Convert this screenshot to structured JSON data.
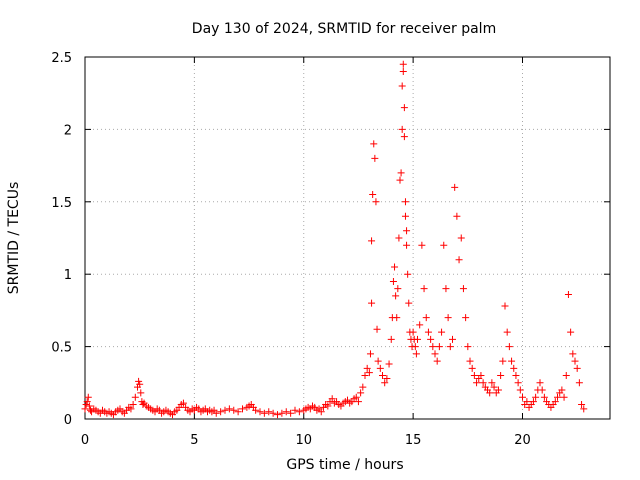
{
  "chart_data": {
    "type": "scatter",
    "title": "Day 130 of 2024, SRMTID for receiver palm",
    "xlabel": "GPS time / hours",
    "ylabel": "SRMTID / TECUs",
    "xlim": [
      0,
      24
    ],
    "ylim": [
      0,
      2.5
    ],
    "x_ticks": [
      0,
      5,
      10,
      15,
      20
    ],
    "x_tick_labels": [
      "0",
      "5",
      "10",
      "15",
      "20"
    ],
    "y_ticks": [
      0,
      0.5,
      1,
      1.5,
      2,
      2.5
    ],
    "y_tick_labels": [
      "0",
      "0.5",
      "1",
      "1.5",
      "2",
      "2.5"
    ],
    "grid": true,
    "marker": "plus",
    "color": "#ff0000",
    "series": [
      {
        "name": "palm",
        "x": [
          0.0,
          0.05,
          0.1,
          0.15,
          0.2,
          0.25,
          0.3,
          0.4,
          0.5,
          0.6,
          0.7,
          0.8,
          0.9,
          1.0,
          1.1,
          1.2,
          1.3,
          1.4,
          1.5,
          1.6,
          1.7,
          1.8,
          1.9,
          2.0,
          2.1,
          2.2,
          2.3,
          2.4,
          2.45,
          2.5,
          2.55,
          2.6,
          2.65,
          2.7,
          2.8,
          2.9,
          3.0,
          3.1,
          3.2,
          3.3,
          3.4,
          3.5,
          3.6,
          3.7,
          3.8,
          3.9,
          4.0,
          4.1,
          4.2,
          4.3,
          4.4,
          4.5,
          4.6,
          4.7,
          4.8,
          4.9,
          5.0,
          5.1,
          5.2,
          5.3,
          5.4,
          5.5,
          5.6,
          5.7,
          5.8,
          5.9,
          6.0,
          6.2,
          6.4,
          6.6,
          6.8,
          7.0,
          7.2,
          7.4,
          7.5,
          7.6,
          7.7,
          7.8,
          8.0,
          8.2,
          8.4,
          8.6,
          8.8,
          9.0,
          9.2,
          9.4,
          9.6,
          9.8,
          10.0,
          10.1,
          10.2,
          10.3,
          10.4,
          10.5,
          10.6,
          10.7,
          10.8,
          10.9,
          11.0,
          11.1,
          11.2,
          11.3,
          11.4,
          11.5,
          11.6,
          11.7,
          11.8,
          11.9,
          12.0,
          12.1,
          12.2,
          12.3,
          12.4,
          12.5,
          12.6,
          12.7,
          12.8,
          12.9,
          13.0,
          13.05,
          13.1,
          13.1,
          13.15,
          13.2,
          13.25,
          13.3,
          13.35,
          13.4,
          13.5,
          13.6,
          13.7,
          13.8,
          13.9,
          14.0,
          14.05,
          14.1,
          14.15,
          14.2,
          14.25,
          14.3,
          14.35,
          14.4,
          14.45,
          14.5,
          14.5,
          14.55,
          14.55,
          14.6,
          14.6,
          14.65,
          14.65,
          14.7,
          14.7,
          14.75,
          14.8,
          14.85,
          14.9,
          14.95,
          15.0,
          15.05,
          15.1,
          15.15,
          15.2,
          15.3,
          15.4,
          15.5,
          15.6,
          15.7,
          15.8,
          15.9,
          16.0,
          16.1,
          16.2,
          16.3,
          16.4,
          16.5,
          16.6,
          16.7,
          16.8,
          16.9,
          17.0,
          17.1,
          17.2,
          17.3,
          17.4,
          17.5,
          17.6,
          17.7,
          17.8,
          17.9,
          18.0,
          18.1,
          18.2,
          18.3,
          18.4,
          18.5,
          18.6,
          18.7,
          18.8,
          18.9,
          19.0,
          19.1,
          19.2,
          19.3,
          19.4,
          19.5,
          19.6,
          19.7,
          19.8,
          19.9,
          20.0,
          20.1,
          20.2,
          20.3,
          20.4,
          20.5,
          20.6,
          20.7,
          20.8,
          20.9,
          21.0,
          21.1,
          21.2,
          21.3,
          21.4,
          21.5,
          21.6,
          21.7,
          21.8,
          21.9,
          22.0,
          22.1,
          22.2,
          22.3,
          22.4,
          22.5,
          22.6,
          22.7,
          22.8
        ],
        "y": [
          0.07,
          0.1,
          0.12,
          0.15,
          0.09,
          0.06,
          0.05,
          0.07,
          0.06,
          0.05,
          0.04,
          0.06,
          0.05,
          0.04,
          0.05,
          0.04,
          0.03,
          0.05,
          0.06,
          0.07,
          0.05,
          0.04,
          0.06,
          0.08,
          0.07,
          0.1,
          0.15,
          0.22,
          0.26,
          0.24,
          0.18,
          0.12,
          0.1,
          0.11,
          0.09,
          0.08,
          0.07,
          0.06,
          0.05,
          0.07,
          0.06,
          0.04,
          0.05,
          0.06,
          0.05,
          0.04,
          0.03,
          0.05,
          0.06,
          0.08,
          0.1,
          0.11,
          0.08,
          0.06,
          0.05,
          0.07,
          0.06,
          0.08,
          0.07,
          0.05,
          0.06,
          0.07,
          0.05,
          0.06,
          0.05,
          0.06,
          0.04,
          0.05,
          0.06,
          0.07,
          0.06,
          0.05,
          0.07,
          0.08,
          0.09,
          0.1,
          0.08,
          0.06,
          0.05,
          0.04,
          0.05,
          0.04,
          0.03,
          0.04,
          0.05,
          0.04,
          0.06,
          0.05,
          0.06,
          0.07,
          0.08,
          0.07,
          0.09,
          0.08,
          0.06,
          0.07,
          0.05,
          0.08,
          0.1,
          0.09,
          0.12,
          0.14,
          0.11,
          0.12,
          0.1,
          0.09,
          0.11,
          0.12,
          0.13,
          0.11,
          0.12,
          0.14,
          0.15,
          0.12,
          0.18,
          0.22,
          0.3,
          0.35,
          0.32,
          0.45,
          0.8,
          1.23,
          1.55,
          1.9,
          1.8,
          1.5,
          0.62,
          0.4,
          0.35,
          0.3,
          0.25,
          0.28,
          0.38,
          0.55,
          0.7,
          0.95,
          1.05,
          0.85,
          0.7,
          0.9,
          1.25,
          1.65,
          1.7,
          2.0,
          2.3,
          2.4,
          2.45,
          2.15,
          1.95,
          1.5,
          1.4,
          1.3,
          1.2,
          1.0,
          0.8,
          0.6,
          0.55,
          0.5,
          0.6,
          0.55,
          0.5,
          0.45,
          0.55,
          0.65,
          1.2,
          0.9,
          0.7,
          0.6,
          0.55,
          0.5,
          0.45,
          0.4,
          0.5,
          0.6,
          1.2,
          0.9,
          0.7,
          0.5,
          0.55,
          1.6,
          1.4,
          1.1,
          1.25,
          0.9,
          0.7,
          0.5,
          0.4,
          0.35,
          0.3,
          0.25,
          0.28,
          0.3,
          0.25,
          0.22,
          0.2,
          0.18,
          0.25,
          0.22,
          0.18,
          0.2,
          0.3,
          0.4,
          0.78,
          0.6,
          0.5,
          0.4,
          0.35,
          0.3,
          0.25,
          0.2,
          0.15,
          0.1,
          0.12,
          0.08,
          0.1,
          0.12,
          0.15,
          0.2,
          0.25,
          0.2,
          0.15,
          0.12,
          0.1,
          0.08,
          0.1,
          0.12,
          0.15,
          0.18,
          0.2,
          0.15,
          0.3,
          0.86,
          0.6,
          0.45,
          0.4,
          0.35,
          0.25,
          0.1,
          0.07
        ]
      }
    ]
  }
}
